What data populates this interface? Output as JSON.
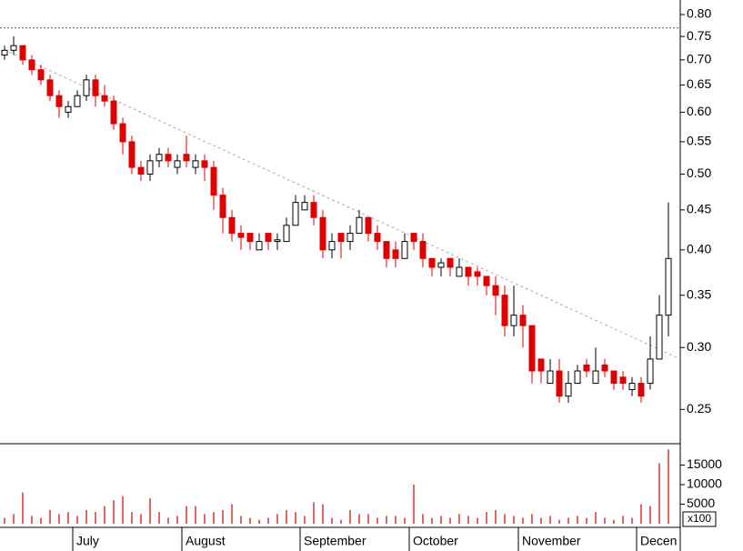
{
  "chart_data": [
    {
      "type": "candlestick",
      "log_scale": true,
      "ylim": [
        0.226,
        0.835
      ],
      "yticks": [
        {
          "value": 0.8,
          "label": "0.80"
        },
        {
          "value": 0.75,
          "label": "0.75"
        },
        {
          "value": 0.7,
          "label": "0.70"
        },
        {
          "value": 0.65,
          "label": "0.65"
        },
        {
          "value": 0.6,
          "label": "0.60"
        },
        {
          "value": 0.55,
          "label": "0.55"
        },
        {
          "value": 0.5,
          "label": "0.50"
        },
        {
          "value": 0.45,
          "label": "0.45"
        },
        {
          "value": 0.4,
          "label": "0.40"
        },
        {
          "value": 0.35,
          "label": "0.35"
        },
        {
          "value": 0.3,
          "label": "0.30"
        },
        {
          "value": 0.25,
          "label": "0.25"
        }
      ],
      "xticks": [
        {
          "value": 8,
          "label": "July"
        },
        {
          "value": 20,
          "label": "August"
        },
        {
          "value": 33,
          "label": "September"
        },
        {
          "value": 45,
          "label": "October"
        },
        {
          "value": 57,
          "label": "November"
        },
        {
          "value": 70,
          "label": "Decen"
        }
      ],
      "up_color": "#ffffff",
      "down_color": "#e00000",
      "open": [
        0.71,
        0.72,
        0.73,
        0.7,
        0.68,
        0.66,
        0.63,
        0.6,
        0.61,
        0.63,
        0.66,
        0.63,
        0.62,
        0.58,
        0.55,
        0.51,
        0.5,
        0.52,
        0.53,
        0.51,
        0.53,
        0.51,
        0.52,
        0.51,
        0.47,
        0.44,
        0.42,
        0.42,
        0.4,
        0.42,
        0.41,
        0.41,
        0.43,
        0.45,
        0.46,
        0.44,
        0.4,
        0.42,
        0.41,
        0.42,
        0.44,
        0.42,
        0.41,
        0.4,
        0.39,
        0.42,
        0.41,
        0.39,
        0.38,
        0.39,
        0.37,
        0.38,
        0.375,
        0.37,
        0.36,
        0.35,
        0.32,
        0.33,
        0.32,
        0.29,
        0.27,
        0.28,
        0.26,
        0.27,
        0.285,
        0.27,
        0.285,
        0.28,
        0.275,
        0.265,
        0.27,
        0.27,
        0.29,
        0.33
      ],
      "high": [
        0.73,
        0.75,
        0.73,
        0.71,
        0.69,
        0.67,
        0.64,
        0.62,
        0.64,
        0.67,
        0.67,
        0.65,
        0.63,
        0.59,
        0.56,
        0.52,
        0.53,
        0.54,
        0.54,
        0.53,
        0.56,
        0.53,
        0.53,
        0.52,
        0.48,
        0.45,
        0.43,
        0.42,
        0.42,
        0.42,
        0.42,
        0.44,
        0.47,
        0.47,
        0.47,
        0.45,
        0.42,
        0.42,
        0.43,
        0.45,
        0.44,
        0.43,
        0.41,
        0.41,
        0.42,
        0.42,
        0.42,
        0.39,
        0.39,
        0.39,
        0.39,
        0.38,
        0.38,
        0.37,
        0.37,
        0.36,
        0.36,
        0.34,
        0.32,
        0.29,
        0.29,
        0.29,
        0.28,
        0.285,
        0.29,
        0.3,
        0.29,
        0.28,
        0.28,
        0.275,
        0.275,
        0.31,
        0.35,
        0.46
      ],
      "low": [
        0.7,
        0.71,
        0.69,
        0.67,
        0.65,
        0.62,
        0.59,
        0.59,
        0.61,
        0.62,
        0.61,
        0.61,
        0.57,
        0.53,
        0.5,
        0.49,
        0.49,
        0.51,
        0.51,
        0.5,
        0.51,
        0.5,
        0.49,
        0.45,
        0.42,
        0.41,
        0.4,
        0.4,
        0.4,
        0.4,
        0.4,
        0.41,
        0.43,
        0.45,
        0.43,
        0.39,
        0.39,
        0.39,
        0.4,
        0.42,
        0.41,
        0.4,
        0.38,
        0.38,
        0.39,
        0.4,
        0.38,
        0.37,
        0.37,
        0.37,
        0.37,
        0.36,
        0.36,
        0.35,
        0.33,
        0.31,
        0.31,
        0.3,
        0.27,
        0.27,
        0.27,
        0.255,
        0.255,
        0.27,
        0.275,
        0.27,
        0.275,
        0.265,
        0.265,
        0.26,
        0.255,
        0.265,
        0.29,
        0.31
      ],
      "close": [
        0.72,
        0.73,
        0.7,
        0.68,
        0.66,
        0.63,
        0.61,
        0.61,
        0.63,
        0.66,
        0.63,
        0.62,
        0.58,
        0.55,
        0.51,
        0.5,
        0.52,
        0.53,
        0.52,
        0.52,
        0.52,
        0.52,
        0.51,
        0.47,
        0.44,
        0.42,
        0.415,
        0.41,
        0.41,
        0.41,
        0.412,
        0.43,
        0.46,
        0.46,
        0.44,
        0.4,
        0.41,
        0.41,
        0.42,
        0.44,
        0.42,
        0.41,
        0.39,
        0.39,
        0.41,
        0.41,
        0.39,
        0.38,
        0.385,
        0.38,
        0.38,
        0.37,
        0.37,
        0.36,
        0.35,
        0.32,
        0.33,
        0.32,
        0.28,
        0.28,
        0.28,
        0.26,
        0.27,
        0.28,
        0.28,
        0.28,
        0.28,
        0.27,
        0.27,
        0.27,
        0.26,
        0.29,
        0.33,
        0.39
      ],
      "trendline": {
        "x": [
          0,
          74.3
        ],
        "y": [
          0.721,
          0.29
        ],
        "color": "#aaaaaa"
      },
      "reference_line": {
        "y": 0.769,
        "color": "#555555"
      }
    },
    {
      "type": "bar",
      "ylim": [
        0,
        20000
      ],
      "yticks": [
        5000,
        10000,
        15000
      ],
      "unit_label": "x100",
      "color": "#cc0000",
      "values": [
        1500,
        2500,
        8000,
        2000,
        1500,
        3500,
        2500,
        3000,
        2000,
        3500,
        3000,
        4500,
        6000,
        7000,
        3000,
        2500,
        6500,
        3000,
        1500,
        2000,
        4500,
        4500,
        2500,
        3000,
        3500,
        5000,
        2000,
        1500,
        1000,
        1500,
        2500,
        3500,
        3000,
        2000,
        5500,
        5000,
        1500,
        1000,
        3500,
        2500,
        2500,
        1500,
        2000,
        2000,
        1500,
        10000,
        2500,
        1500,
        2000,
        1500,
        2500,
        2000,
        1500,
        3000,
        3500,
        2500,
        2000,
        1500,
        2500,
        1500,
        2000,
        1000,
        1500,
        2000,
        1500,
        3000,
        1500,
        1000,
        2000,
        1500,
        5000,
        4500,
        15500,
        19000
      ]
    }
  ]
}
